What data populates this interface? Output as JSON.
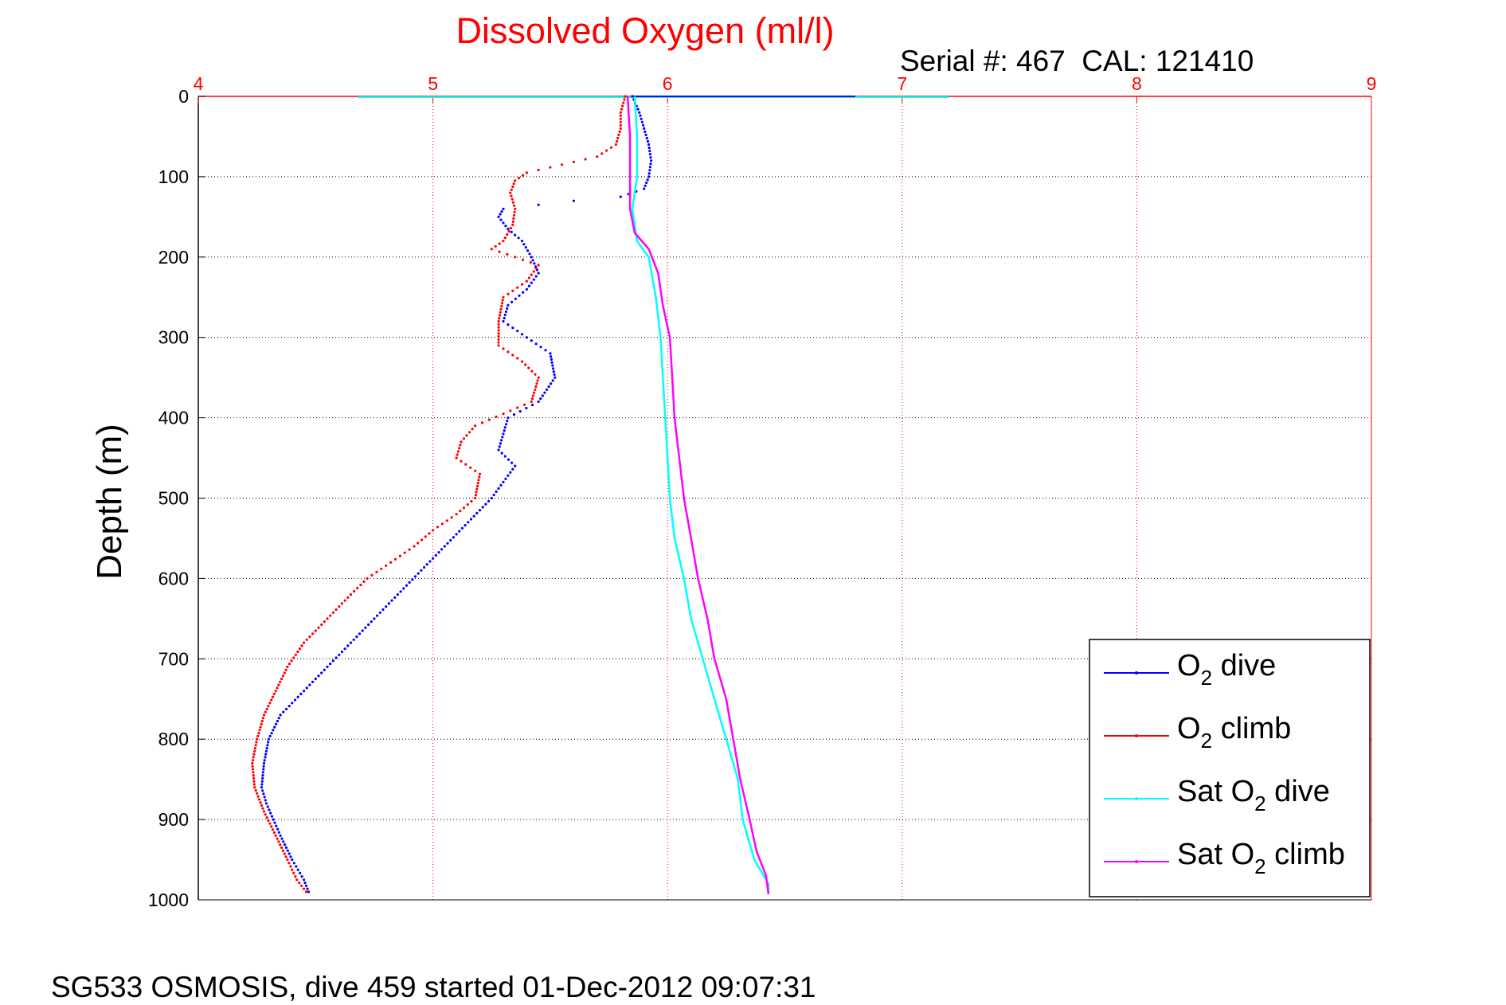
{
  "chart_data": {
    "type": "scatter",
    "title": "Dissolved Oxygen (ml/l)",
    "subtitle": "Serial #: 467  CAL: 121410",
    "ylabel": "Depth (m)",
    "xlim": [
      4,
      9
    ],
    "ylim": [
      0,
      1000
    ],
    "y_reversed": true,
    "x_axis_position": "top",
    "xticks": [
      "4",
      "5",
      "6",
      "7",
      "8",
      "9"
    ],
    "yticks": [
      "0",
      "100",
      "200",
      "300",
      "400",
      "500",
      "600",
      "700",
      "800",
      "900",
      "1000"
    ],
    "grid": true,
    "legend_position": "lower-right",
    "series": [
      {
        "name_main": "O",
        "name_sub": "2",
        "name_rest": " dive",
        "color": "#0000ff",
        "style": "dots",
        "points": [
          [
            5.85,
            0
          ],
          [
            5.88,
            20
          ],
          [
            5.9,
            40
          ],
          [
            5.92,
            60
          ],
          [
            5.93,
            80
          ],
          [
            5.92,
            100
          ],
          [
            5.9,
            115
          ],
          [
            5.8,
            125
          ],
          [
            5.6,
            130
          ],
          [
            5.45,
            135
          ],
          [
            5.3,
            140
          ],
          [
            5.28,
            150
          ],
          [
            5.32,
            165
          ],
          [
            5.38,
            180
          ],
          [
            5.42,
            200
          ],
          [
            5.45,
            220
          ],
          [
            5.4,
            240
          ],
          [
            5.32,
            260
          ],
          [
            5.3,
            280
          ],
          [
            5.4,
            300
          ],
          [
            5.5,
            320
          ],
          [
            5.52,
            350
          ],
          [
            5.45,
            380
          ],
          [
            5.32,
            400
          ],
          [
            5.3,
            420
          ],
          [
            5.28,
            440
          ],
          [
            5.35,
            460
          ],
          [
            5.3,
            480
          ],
          [
            5.25,
            500
          ],
          [
            5.15,
            530
          ],
          [
            5.05,
            560
          ],
          [
            4.95,
            590
          ],
          [
            4.85,
            620
          ],
          [
            4.75,
            650
          ],
          [
            4.65,
            680
          ],
          [
            4.55,
            710
          ],
          [
            4.45,
            740
          ],
          [
            4.35,
            770
          ],
          [
            4.3,
            800
          ],
          [
            4.28,
            830
          ],
          [
            4.27,
            860
          ],
          [
            4.29,
            880
          ],
          [
            4.32,
            900
          ],
          [
            4.35,
            920
          ],
          [
            4.4,
            950
          ],
          [
            4.45,
            975
          ],
          [
            4.47,
            990
          ]
        ]
      },
      {
        "name_main": "O",
        "name_sub": "2",
        "name_rest": " climb",
        "color": "#ff0000",
        "style": "dots",
        "points": [
          [
            5.82,
            0
          ],
          [
            5.8,
            20
          ],
          [
            5.8,
            40
          ],
          [
            5.78,
            60
          ],
          [
            5.7,
            75
          ],
          [
            5.55,
            85
          ],
          [
            5.4,
            95
          ],
          [
            5.35,
            105
          ],
          [
            5.33,
            120
          ],
          [
            5.35,
            140
          ],
          [
            5.34,
            160
          ],
          [
            5.3,
            180
          ],
          [
            5.25,
            190
          ],
          [
            5.35,
            200
          ],
          [
            5.45,
            210
          ],
          [
            5.4,
            230
          ],
          [
            5.3,
            250
          ],
          [
            5.28,
            280
          ],
          [
            5.28,
            310
          ],
          [
            5.38,
            330
          ],
          [
            5.45,
            350
          ],
          [
            5.42,
            380
          ],
          [
            5.3,
            395
          ],
          [
            5.18,
            410
          ],
          [
            5.12,
            430
          ],
          [
            5.1,
            450
          ],
          [
            5.2,
            470
          ],
          [
            5.18,
            500
          ],
          [
            5.1,
            520
          ],
          [
            5.0,
            540
          ],
          [
            4.92,
            560
          ],
          [
            4.82,
            580
          ],
          [
            4.72,
            600
          ],
          [
            4.65,
            620
          ],
          [
            4.55,
            650
          ],
          [
            4.45,
            680
          ],
          [
            4.38,
            710
          ],
          [
            4.33,
            740
          ],
          [
            4.28,
            770
          ],
          [
            4.25,
            800
          ],
          [
            4.23,
            830
          ],
          [
            4.24,
            860
          ],
          [
            4.28,
            890
          ],
          [
            4.33,
            920
          ],
          [
            4.38,
            950
          ],
          [
            4.42,
            975
          ],
          [
            4.46,
            990
          ]
        ]
      },
      {
        "name_main": "Sat O",
        "name_sub": "2",
        "name_rest": " dive",
        "color": "#00ffff",
        "style": "line",
        "points": [
          [
            5.86,
            0
          ],
          [
            5.87,
            50
          ],
          [
            5.87,
            100
          ],
          [
            5.85,
            140
          ],
          [
            5.87,
            180
          ],
          [
            5.92,
            200
          ],
          [
            5.95,
            250
          ],
          [
            5.97,
            300
          ],
          [
            5.98,
            350
          ],
          [
            5.99,
            400
          ],
          [
            6.0,
            450
          ],
          [
            6.01,
            500
          ],
          [
            6.03,
            550
          ],
          [
            6.07,
            600
          ],
          [
            6.1,
            650
          ],
          [
            6.15,
            700
          ],
          [
            6.2,
            750
          ],
          [
            6.25,
            800
          ],
          [
            6.3,
            850
          ],
          [
            6.32,
            900
          ],
          [
            6.37,
            950
          ],
          [
            6.43,
            980
          ],
          [
            6.43,
            993
          ]
        ]
      },
      {
        "name_main": "Sat O",
        "name_sub": "2",
        "name_rest": " climb",
        "color": "#ff00ff",
        "style": "line",
        "points": [
          [
            5.83,
            0
          ],
          [
            5.84,
            50
          ],
          [
            5.84,
            100
          ],
          [
            5.84,
            140
          ],
          [
            5.86,
            170
          ],
          [
            5.92,
            190
          ],
          [
            5.96,
            220
          ],
          [
            5.98,
            260
          ],
          [
            6.01,
            300
          ],
          [
            6.02,
            350
          ],
          [
            6.03,
            400
          ],
          [
            6.05,
            450
          ],
          [
            6.07,
            500
          ],
          [
            6.1,
            550
          ],
          [
            6.13,
            600
          ],
          [
            6.17,
            650
          ],
          [
            6.2,
            700
          ],
          [
            6.25,
            750
          ],
          [
            6.28,
            800
          ],
          [
            6.31,
            850
          ],
          [
            6.35,
            900
          ],
          [
            6.38,
            940
          ],
          [
            6.42,
            970
          ],
          [
            6.43,
            993
          ]
        ]
      }
    ],
    "surface_spikes": [
      {
        "color": "#00ffff",
        "x_from": 4.68,
        "x_to": 7.2,
        "depth": 1
      },
      {
        "color": "#0000ff",
        "x_from": 5.85,
        "x_to": 6.8,
        "depth": 0
      }
    ]
  },
  "footer": {
    "caption": "SG533 OSMOSIS, dive 459 started 01-Dec-2012 09:07:31"
  }
}
